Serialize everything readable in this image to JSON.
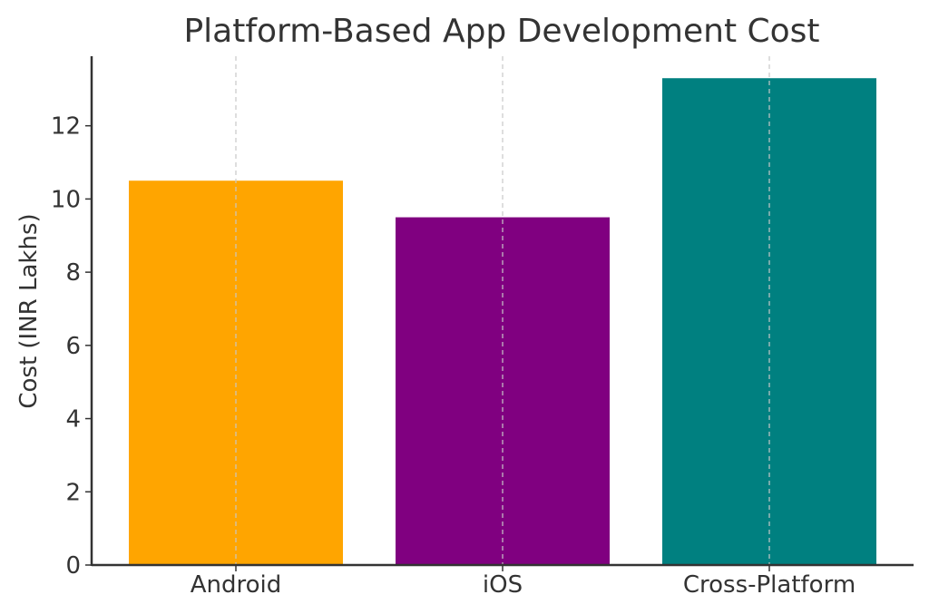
{
  "chart_data": {
    "type": "bar",
    "title": "Platform-Based App Development Cost",
    "xlabel": "",
    "ylabel": "Cost (INR Lakhs)",
    "categories": [
      "Android",
      "iOS",
      "Cross-Platform"
    ],
    "values": [
      10.5,
      9.5,
      13.3
    ],
    "colors": [
      "#FFA500",
      "#800080",
      "#008080"
    ],
    "ylim": [
      0,
      13.9
    ],
    "yticks": [
      0,
      2,
      4,
      6,
      8,
      10,
      12
    ],
    "grid": "x-dashed",
    "legend": "none"
  }
}
